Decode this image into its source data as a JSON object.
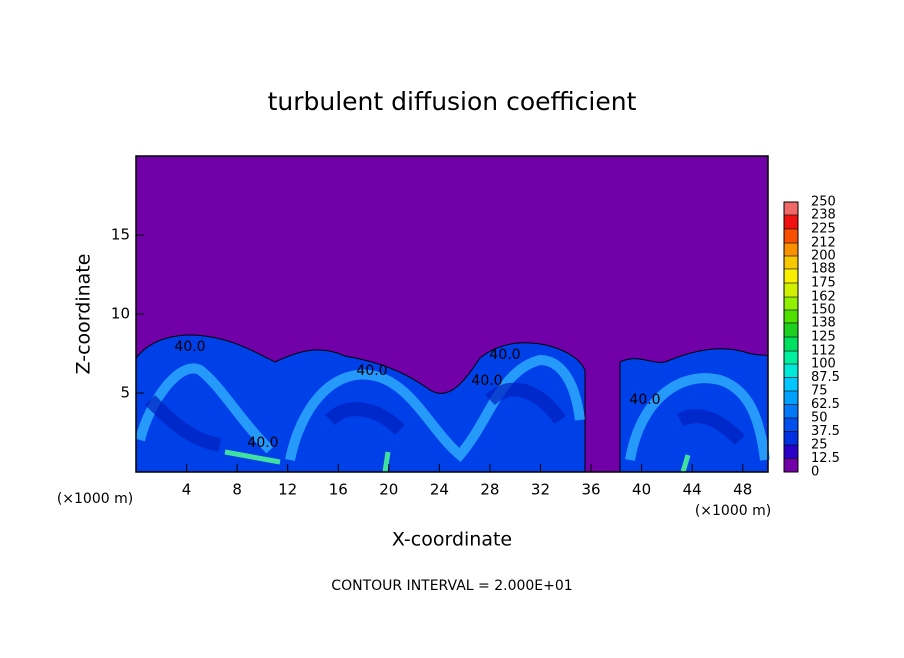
{
  "chart_data": {
    "type": "contour",
    "title": "turbulent diffusion coefficient",
    "x_label": "X-coordinate",
    "y_label": "Z-coordinate",
    "x_unit": "(×1000 m)",
    "y_unit": "(×1000 m)",
    "footnote": "CONTOUR INTERVAL = 2.000E+01",
    "xlim": [
      0,
      50
    ],
    "ylim": [
      0,
      20
    ],
    "xticks": [
      4,
      8,
      12,
      16,
      20,
      24,
      28,
      32,
      36,
      40,
      44,
      48
    ],
    "yticks": [
      5,
      10,
      15
    ],
    "contour_labels": [
      "40.0",
      "40.0",
      "40.0",
      "40.0",
      "40.0",
      "40.0"
    ],
    "colorbar": {
      "levels": [
        0,
        12.5,
        25,
        37.5,
        50,
        62.5,
        75,
        87.5,
        100,
        112,
        125,
        138,
        150,
        162,
        175,
        188,
        200,
        212,
        225,
        238,
        250
      ],
      "colors": [
        "#7200a8",
        "#2a00c8",
        "#0030e0",
        "#0050f0",
        "#0078f8",
        "#00a0ff",
        "#00c8ff",
        "#00e8d8",
        "#00f0a0",
        "#00e060",
        "#20d020",
        "#50e000",
        "#90f000",
        "#d0f000",
        "#f8f000",
        "#f8c800",
        "#f89000",
        "#f85000",
        "#f01010",
        "#f06868"
      ]
    }
  }
}
